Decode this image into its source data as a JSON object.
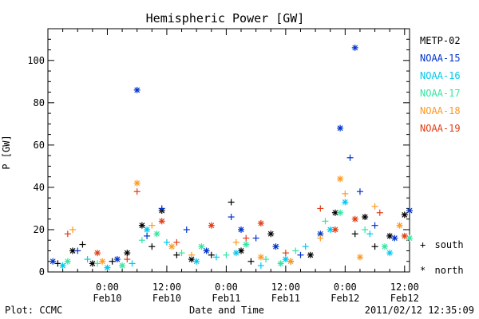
{
  "chart_data": {
    "type": "scatter",
    "title": "Hemispheric Power [GW]",
    "xlabel": "Date and Time",
    "ylabel": "P [GW]",
    "x_range": [
      "2011-02-09 12:00",
      "2011-02-12 13:00"
    ],
    "ylim": [
      0,
      115
    ],
    "y_ticks": [
      0,
      20,
      40,
      60,
      80,
      100
    ],
    "x_ticks": [
      {
        "time": "2011-02-10 00:00",
        "label1": "0:00",
        "label2": "Feb10"
      },
      {
        "time": "2011-02-10 12:00",
        "label1": "12:00",
        "label2": "Feb10"
      },
      {
        "time": "2011-02-11 00:00",
        "label1": "0:00",
        "label2": "Feb11"
      },
      {
        "time": "2011-02-11 12:00",
        "label1": "12:00",
        "label2": "Feb11"
      },
      {
        "time": "2011-02-12 00:00",
        "label1": "0:00",
        "label2": "Feb12"
      },
      {
        "time": "2011-02-12 12:00",
        "label1": "12:00",
        "label2": "Feb12"
      }
    ],
    "grid": false,
    "legend_placement": "right",
    "marker_legend": [
      {
        "symbol": "+",
        "label": "south"
      },
      {
        "symbol": "*",
        "label": "north"
      }
    ],
    "series": [
      {
        "name": "METP-02",
        "color": "#000000",
        "points": [
          [
            "2011-02-09 14:00",
            4,
            "+"
          ],
          [
            "2011-02-09 17:00",
            10,
            "*"
          ],
          [
            "2011-02-09 19:00",
            13,
            "+"
          ],
          [
            "2011-02-09 21:00",
            4,
            "*"
          ],
          [
            "2011-02-10 01:00",
            5,
            "+"
          ],
          [
            "2011-02-10 04:00",
            9,
            "*"
          ],
          [
            "2011-02-10 07:00",
            22,
            "*"
          ],
          [
            "2011-02-10 09:00",
            12,
            "+"
          ],
          [
            "2011-02-10 11:00",
            29,
            "*"
          ],
          [
            "2011-02-10 14:00",
            8,
            "+"
          ],
          [
            "2011-02-10 17:00",
            6,
            "*"
          ],
          [
            "2011-02-10 21:00",
            8,
            "+"
          ],
          [
            "2011-02-11 01:00",
            33,
            "+"
          ],
          [
            "2011-02-11 03:00",
            10,
            "*"
          ],
          [
            "2011-02-11 05:00",
            5,
            "+"
          ],
          [
            "2011-02-11 09:00",
            18,
            "*"
          ],
          [
            "2011-02-11 13:00",
            5,
            "+"
          ],
          [
            "2011-02-11 17:00",
            8,
            "*"
          ],
          [
            "2011-02-11 22:00",
            28,
            "*"
          ],
          [
            "2011-02-12 02:00",
            18,
            "+"
          ],
          [
            "2011-02-12 04:00",
            26,
            "*"
          ],
          [
            "2011-02-12 06:00",
            12,
            "+"
          ],
          [
            "2011-02-12 09:00",
            17,
            "*"
          ],
          [
            "2011-02-12 12:00",
            27,
            "*"
          ]
        ]
      },
      {
        "name": "NOAA-15",
        "color": "#0033cc",
        "points": [
          [
            "2011-02-09 13:00",
            5,
            "*"
          ],
          [
            "2011-02-09 18:00",
            10,
            "+"
          ],
          [
            "2011-02-10 02:00",
            6,
            "*"
          ],
          [
            "2011-02-10 06:00",
            86,
            "*"
          ],
          [
            "2011-02-10 08:00",
            17,
            "+"
          ],
          [
            "2011-02-10 11:00",
            30,
            "+"
          ],
          [
            "2011-02-10 16:00",
            20,
            "+"
          ],
          [
            "2011-02-10 20:00",
            10,
            "*"
          ],
          [
            "2011-02-11 01:00",
            26,
            "+"
          ],
          [
            "2011-02-11 03:00",
            20,
            "*"
          ],
          [
            "2011-02-11 06:00",
            16,
            "+"
          ],
          [
            "2011-02-11 10:00",
            12,
            "*"
          ],
          [
            "2011-02-11 15:00",
            8,
            "+"
          ],
          [
            "2011-02-11 19:00",
            18,
            "*"
          ],
          [
            "2011-02-11 23:00",
            68,
            "*"
          ],
          [
            "2011-02-12 01:00",
            54,
            "+"
          ],
          [
            "2011-02-12 03:00",
            38,
            "+"
          ],
          [
            "2011-02-12 02:00",
            106,
            "*"
          ],
          [
            "2011-02-12 06:00",
            22,
            "+"
          ],
          [
            "2011-02-12 10:00",
            16,
            "*"
          ],
          [
            "2011-02-12 13:00",
            29,
            "*"
          ]
        ]
      },
      {
        "name": "NOAA-16",
        "color": "#00c8f0",
        "points": [
          [
            "2011-02-09 15:00",
            3,
            "*"
          ],
          [
            "2011-02-09 20:00",
            6,
            "+"
          ],
          [
            "2011-02-10 00:00",
            2,
            "*"
          ],
          [
            "2011-02-10 05:00",
            4,
            "+"
          ],
          [
            "2011-02-10 08:00",
            20,
            "*"
          ],
          [
            "2011-02-10 12:00",
            14,
            "+"
          ],
          [
            "2011-02-10 18:00",
            5,
            "*"
          ],
          [
            "2011-02-10 22:00",
            7,
            "+"
          ],
          [
            "2011-02-11 02:00",
            9,
            "*"
          ],
          [
            "2011-02-11 07:00",
            3,
            "+"
          ],
          [
            "2011-02-11 12:00",
            6,
            "*"
          ],
          [
            "2011-02-11 16:00",
            12,
            "+"
          ],
          [
            "2011-02-11 21:00",
            20,
            "*"
          ],
          [
            "2011-02-12 00:00",
            33,
            "*"
          ],
          [
            "2011-02-12 05:00",
            18,
            "+"
          ],
          [
            "2011-02-12 09:00",
            9,
            "*"
          ]
        ]
      },
      {
        "name": "NOAA-17",
        "color": "#33e6a0",
        "points": [
          [
            "2011-02-09 16:00",
            5,
            "*"
          ],
          [
            "2011-02-09 22:00",
            4,
            "+"
          ],
          [
            "2011-02-10 03:00",
            3,
            "*"
          ],
          [
            "2011-02-10 07:00",
            15,
            "+"
          ],
          [
            "2011-02-10 10:00",
            18,
            "*"
          ],
          [
            "2011-02-10 15:00",
            9,
            "+"
          ],
          [
            "2011-02-10 19:00",
            12,
            "*"
          ],
          [
            "2011-02-11 00:00",
            8,
            "+"
          ],
          [
            "2011-02-11 04:00",
            13,
            "*"
          ],
          [
            "2011-02-11 08:00",
            6,
            "+"
          ],
          [
            "2011-02-11 11:00",
            4,
            "*"
          ],
          [
            "2011-02-11 14:00",
            10,
            "+"
          ],
          [
            "2011-02-11 20:00",
            24,
            "+"
          ],
          [
            "2011-02-11 23:00",
            28,
            "*"
          ],
          [
            "2011-02-12 04:00",
            20,
            "+"
          ],
          [
            "2011-02-12 08:00",
            12,
            "*"
          ],
          [
            "2011-02-12 13:00",
            16,
            "*"
          ]
        ]
      },
      {
        "name": "NOAA-18",
        "color": "#ff9922",
        "points": [
          [
            "2011-02-09 17:00",
            20,
            "+"
          ],
          [
            "2011-02-09 23:00",
            5,
            "*"
          ],
          [
            "2011-02-10 06:00",
            42,
            "*"
          ],
          [
            "2011-02-10 09:00",
            22,
            "+"
          ],
          [
            "2011-02-10 13:00",
            12,
            "*"
          ],
          [
            "2011-02-10 17:00",
            8,
            "+"
          ],
          [
            "2011-02-11 02:00",
            14,
            "+"
          ],
          [
            "2011-02-11 07:00",
            7,
            "*"
          ],
          [
            "2011-02-11 13:00",
            5,
            "*"
          ],
          [
            "2011-02-11 19:00",
            16,
            "+"
          ],
          [
            "2011-02-11 23:00",
            44,
            "*"
          ],
          [
            "2011-02-12 00:00",
            37,
            "+"
          ],
          [
            "2011-02-12 03:00",
            7,
            "*"
          ],
          [
            "2011-02-12 06:00",
            31,
            "+"
          ],
          [
            "2011-02-12 11:00",
            22,
            "*"
          ]
        ]
      },
      {
        "name": "NOAA-19",
        "color": "#e03c14",
        "points": [
          [
            "2011-02-09 16:00",
            18,
            "+"
          ],
          [
            "2011-02-09 22:00",
            9,
            "*"
          ],
          [
            "2011-02-10 04:00",
            6,
            "+"
          ],
          [
            "2011-02-10 06:00",
            38,
            "+"
          ],
          [
            "2011-02-10 11:00",
            24,
            "*"
          ],
          [
            "2011-02-10 14:00",
            14,
            "+"
          ],
          [
            "2011-02-10 21:00",
            22,
            "*"
          ],
          [
            "2011-02-11 04:00",
            16,
            "+"
          ],
          [
            "2011-02-11 07:00",
            23,
            "*"
          ],
          [
            "2011-02-11 12:00",
            9,
            "+"
          ],
          [
            "2011-02-11 19:00",
            30,
            "+"
          ],
          [
            "2011-02-11 22:00",
            20,
            "*"
          ],
          [
            "2011-02-12 02:00",
            25,
            "*"
          ],
          [
            "2011-02-12 07:00",
            28,
            "+"
          ],
          [
            "2011-02-12 12:00",
            17,
            "*"
          ]
        ]
      }
    ]
  },
  "footer": {
    "left": "Plot: CCMC",
    "center": "Date and Time",
    "right": "2011/02/12 12:35:09"
  }
}
